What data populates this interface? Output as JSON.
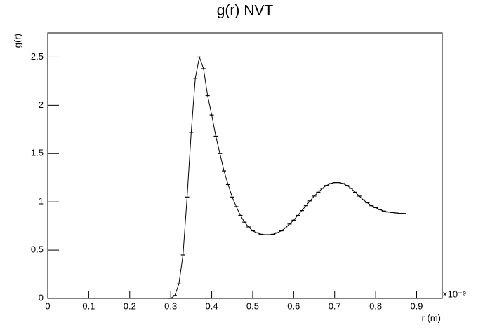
{
  "chart_data": {
    "type": "line",
    "title": "g(r) NVT",
    "x_label": "r (m)",
    "y_label": "g(r)",
    "x_multiplier": "×10⁻⁹",
    "x": [
      0.3,
      0.31,
      0.32,
      0.33,
      0.34,
      0.35,
      0.36,
      0.37,
      0.38,
      0.39,
      0.4,
      0.41,
      0.42,
      0.43,
      0.44,
      0.45,
      0.46,
      0.47,
      0.48,
      0.49,
      0.5,
      0.51,
      0.52,
      0.53,
      0.54,
      0.55,
      0.56,
      0.57,
      0.58,
      0.59,
      0.6,
      0.61,
      0.62,
      0.63,
      0.64,
      0.65,
      0.66,
      0.67,
      0.68,
      0.69,
      0.7,
      0.71,
      0.72,
      0.73,
      0.74,
      0.75,
      0.76,
      0.77,
      0.78,
      0.79,
      0.8,
      0.81,
      0.82,
      0.83,
      0.84,
      0.85,
      0.86,
      0.87
    ],
    "series": [
      {
        "color": "#000000",
        "values": [
          0,
          0.03,
          0.15,
          0.45,
          1.05,
          1.72,
          2.28,
          2.5,
          2.38,
          2.1,
          1.9,
          1.68,
          1.5,
          1.32,
          1.18,
          1.05,
          0.95,
          0.86,
          0.79,
          0.74,
          0.7,
          0.68,
          0.665,
          0.66,
          0.66,
          0.665,
          0.68,
          0.7,
          0.73,
          0.77,
          0.81,
          0.86,
          0.91,
          0.96,
          1.01,
          1.06,
          1.1,
          1.14,
          1.17,
          1.19,
          1.2,
          1.2,
          1.19,
          1.17,
          1.14,
          1.1,
          1.06,
          1.02,
          0.99,
          0.96,
          0.94,
          0.92,
          0.905,
          0.895,
          0.89,
          0.885,
          0.88,
          0.88
        ]
      }
    ],
    "xlim": [
      0,
      0.9625
    ],
    "ylim": [
      0,
      2.75
    ],
    "xticks": [
      0,
      0.1,
      0.2,
      0.3,
      0.4,
      0.5,
      0.6,
      0.7,
      0.8,
      0.9
    ],
    "yticks": [
      0,
      0.5,
      1,
      1.5,
      2,
      2.5
    ]
  }
}
